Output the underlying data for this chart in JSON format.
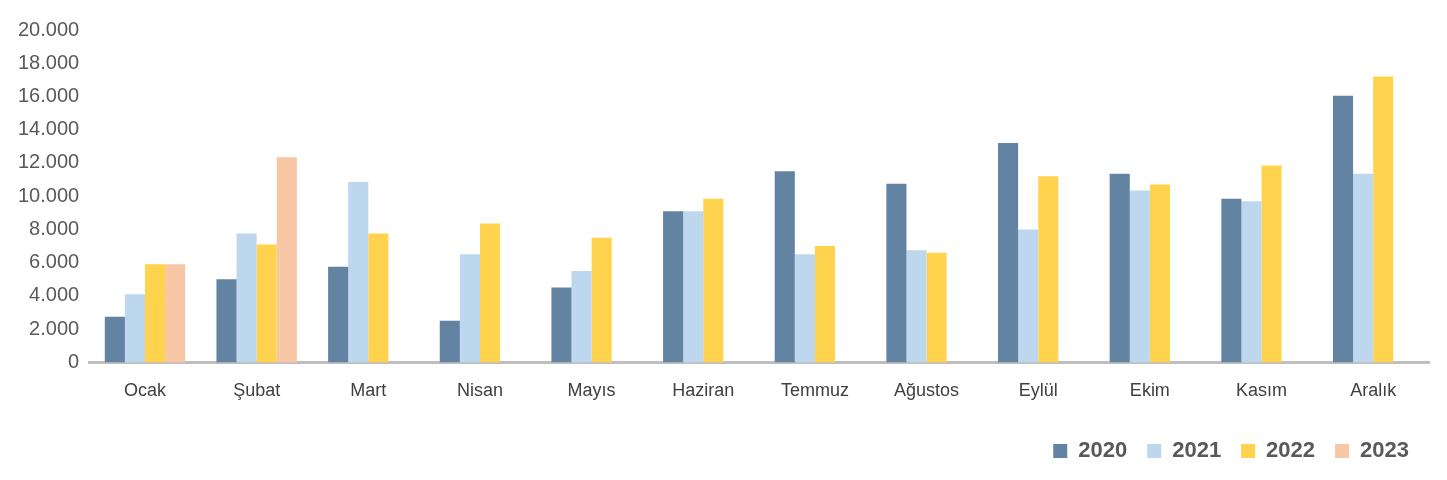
{
  "chart_data": {
    "type": "bar",
    "categories": [
      "Ocak",
      "Şubat",
      "Mart",
      "Nisan",
      "Mayıs",
      "Haziran",
      "Temmuz",
      "Ağustos",
      "Eylül",
      "Ekim",
      "Kasım",
      "Aralık"
    ],
    "series": [
      {
        "name": "2020",
        "color": "#6283a2",
        "values": [
          2750,
          5000,
          5750,
          2500,
          4500,
          9100,
          11500,
          10750,
          13200,
          11350,
          9850,
          16050
        ]
      },
      {
        "name": "2021",
        "color": "#bdd7ee",
        "values": [
          4100,
          7750,
          10850,
          6500,
          5500,
          9100,
          6500,
          6750,
          8000,
          10350,
          9700,
          11350
        ]
      },
      {
        "name": "2022",
        "color": "#ffd34d",
        "values": [
          5900,
          7100,
          7750,
          8350,
          7500,
          9850,
          7000,
          6600,
          11200,
          10700,
          11850,
          17200
        ]
      },
      {
        "name": "2023",
        "color": "#f7c7a6",
        "values": [
          5900,
          12350,
          null,
          null,
          null,
          null,
          null,
          null,
          null,
          null,
          null,
          null
        ]
      }
    ],
    "ylim": [
      0,
      20000
    ],
    "yticks": [
      {
        "value": 0,
        "label": "0"
      },
      {
        "value": 2000,
        "label": "2.000"
      },
      {
        "value": 4000,
        "label": "4.000"
      },
      {
        "value": 6000,
        "label": "6.000"
      },
      {
        "value": 8000,
        "label": "8.000"
      },
      {
        "value": 10000,
        "label": "10.000"
      },
      {
        "value": 12000,
        "label": "12.000"
      },
      {
        "value": 14000,
        "label": "14.000"
      },
      {
        "value": 16000,
        "label": "16.000"
      },
      {
        "value": 18000,
        "label": "18.000"
      },
      {
        "value": 20000,
        "label": "20.000"
      }
    ],
    "grid": false,
    "legend": "bottom right"
  }
}
